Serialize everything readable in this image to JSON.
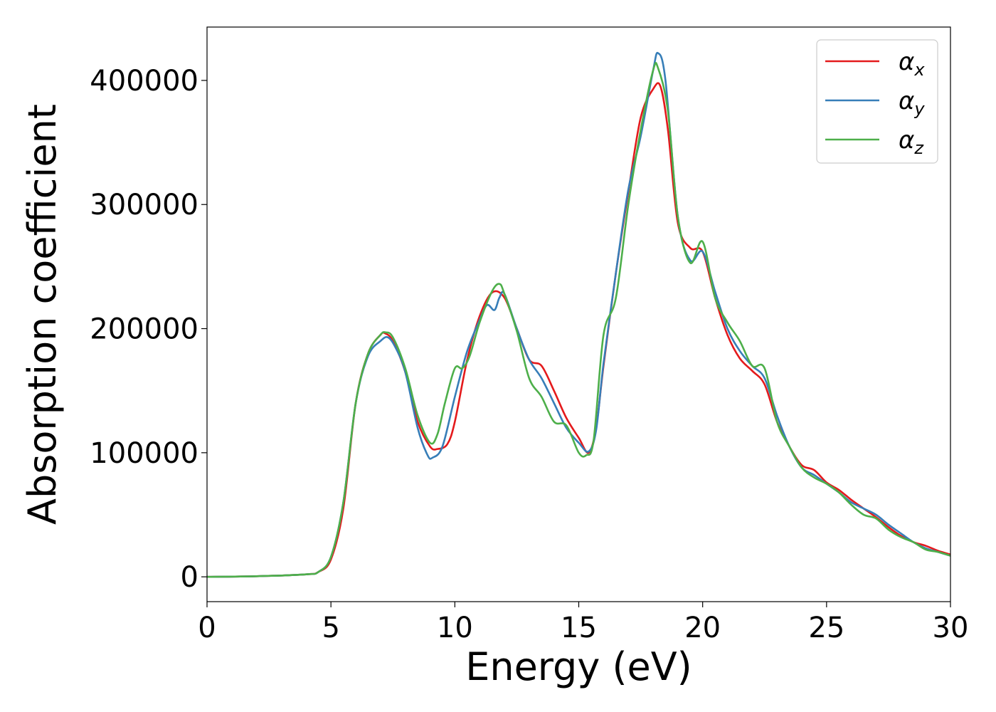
{
  "chart_data": {
    "type": "line",
    "title": "",
    "xlabel": "Energy (eV)",
    "ylabel": "Absorption coefficient",
    "xlim": [
      0,
      30
    ],
    "ylim": [
      -20000,
      443000
    ],
    "xticks": [
      0,
      5,
      10,
      15,
      20,
      25,
      30
    ],
    "yticks": [
      0,
      100000,
      200000,
      300000,
      400000
    ],
    "grid": false,
    "legend_position": "top-right",
    "series": [
      {
        "name": "αx",
        "symbol": "α",
        "subscript": "x",
        "color": "#e41a1c",
        "x": [
          0,
          2,
          4,
          4.5,
          5,
          5.5,
          6,
          6.5,
          7,
          7.2,
          7.5,
          8,
          8.5,
          9,
          9.3,
          9.7,
          10,
          10.5,
          11,
          11.5,
          12,
          12.5,
          13,
          13.5,
          14,
          14.5,
          15,
          15.4,
          15.7,
          16,
          16.5,
          17,
          17.5,
          18,
          18.3,
          18.6,
          19,
          19.5,
          20,
          20.5,
          21,
          21.5,
          22,
          22.5,
          23,
          23.5,
          24,
          24.5,
          25,
          25.5,
          26,
          26.5,
          27,
          27.5,
          28,
          28.5,
          29,
          29.5,
          30
        ],
        "y": [
          0,
          500,
          2000,
          4000,
          14000,
          55000,
          140000,
          180000,
          195000,
          196000,
          190000,
          165000,
          125000,
          105000,
          103000,
          107000,
          125000,
          175000,
          210000,
          229000,
          225000,
          200000,
          175000,
          170000,
          150000,
          128000,
          112000,
          100000,
          120000,
          170000,
          245000,
          310000,
          370000,
          393000,
          395000,
          360000,
          285000,
          265000,
          262000,
          225000,
          195000,
          176000,
          166000,
          155000,
          125000,
          105000,
          90000,
          86000,
          76000,
          70000,
          62000,
          55000,
          48000,
          40000,
          33000,
          28000,
          25000,
          21000,
          18000
        ]
      },
      {
        "name": "αy",
        "symbol": "α",
        "subscript": "y",
        "color": "#377eb8",
        "x": [
          0,
          2,
          4,
          4.5,
          5,
          5.5,
          6,
          6.5,
          7,
          7.3,
          7.6,
          8,
          8.5,
          8.9,
          9.1,
          9.5,
          10,
          10.5,
          11,
          11.3,
          11.6,
          11.8,
          12,
          12.5,
          13,
          13.5,
          14,
          14.5,
          15,
          15.4,
          15.7,
          16,
          16.5,
          17,
          17.5,
          18,
          18.2,
          18.5,
          19,
          19.5,
          20,
          20.5,
          21,
          21.5,
          22,
          22.5,
          23,
          23.5,
          24,
          24.5,
          25,
          25.5,
          26,
          26.5,
          27,
          27.5,
          28,
          28.5,
          29,
          29.5,
          30
        ],
        "y": [
          0,
          500,
          2000,
          4000,
          16000,
          60000,
          140000,
          178000,
          190000,
          193000,
          185000,
          165000,
          120000,
          98000,
          96000,
          105000,
          145000,
          182000,
          207000,
          219000,
          215000,
          225000,
          228000,
          200000,
          175000,
          160000,
          140000,
          120000,
          108000,
          101000,
          118000,
          172000,
          245000,
          312000,
          355000,
          408000,
          422000,
          400000,
          290000,
          255000,
          262000,
          230000,
          200000,
          182000,
          170000,
          160000,
          130000,
          105000,
          88000,
          82000,
          75000,
          68000,
          60000,
          55000,
          50000,
          42000,
          35000,
          28000,
          23000,
          20000,
          17000
        ]
      },
      {
        "name": "αz",
        "symbol": "α",
        "subscript": "z",
        "color": "#4daf4a",
        "x": [
          0,
          2,
          4,
          4.5,
          5,
          5.5,
          6,
          6.5,
          7,
          7.2,
          7.5,
          8,
          8.5,
          9,
          9.3,
          9.6,
          10,
          10.3,
          10.6,
          11,
          11.5,
          11.8,
          12,
          12.5,
          13,
          13.5,
          14,
          14.5,
          15,
          15.3,
          15.6,
          16,
          16.5,
          17,
          17.5,
          18,
          18.2,
          18.6,
          19,
          19.5,
          20,
          20.5,
          21,
          21.5,
          22,
          22.5,
          23,
          23.5,
          24,
          24.5,
          25,
          25.5,
          26,
          26.5,
          27,
          27.5,
          28,
          28.5,
          29,
          29.5,
          30
        ],
        "y": [
          0,
          500,
          2000,
          4000,
          16000,
          60000,
          140000,
          180000,
          195000,
          197000,
          193000,
          168000,
          130000,
          108000,
          115000,
          140000,
          168000,
          168000,
          178000,
          205000,
          230000,
          236000,
          228000,
          198000,
          160000,
          145000,
          125000,
          122000,
          100000,
          98000,
          110000,
          195000,
          225000,
          300000,
          360000,
          408000,
          410000,
          375000,
          290000,
          253000,
          270000,
          225000,
          205000,
          190000,
          170000,
          168000,
          125000,
          105000,
          88000,
          80000,
          75000,
          68000,
          58000,
          50000,
          47000,
          38000,
          32000,
          28000,
          22000,
          20000,
          17000
        ]
      }
    ]
  }
}
